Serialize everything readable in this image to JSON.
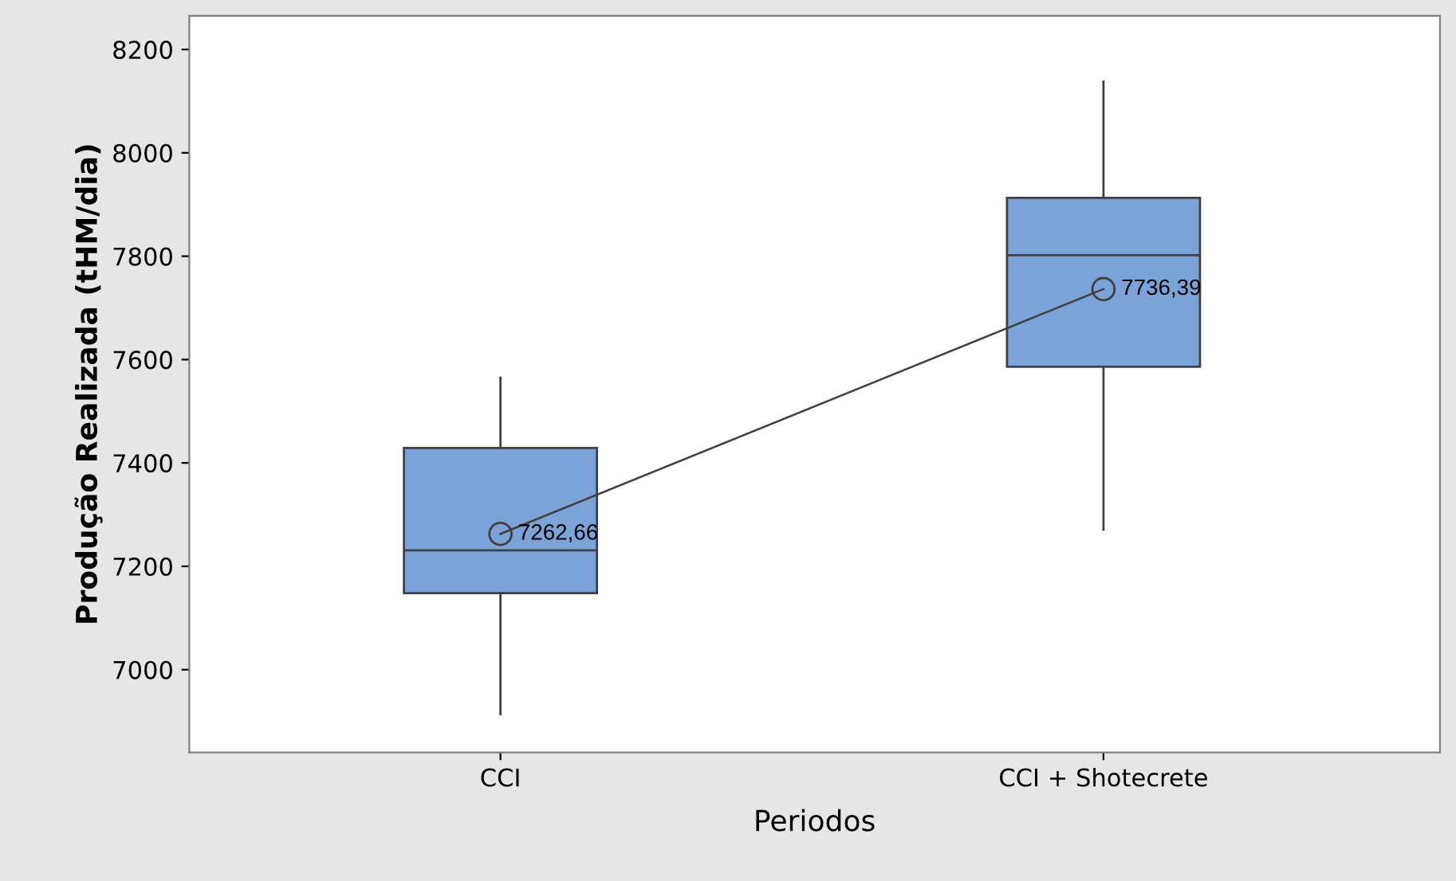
{
  "chart_data": {
    "type": "box",
    "xlabel": "Periodos",
    "ylabel": "Produção Realizada (tHM/dia)",
    "categories": [
      "CCI",
      "CCI + Shotecrete"
    ],
    "ylim": [
      6840,
      8265
    ],
    "yticks": [
      7000,
      7200,
      7400,
      7600,
      7800,
      8000,
      8200
    ],
    "grid": false,
    "legend": false,
    "boxes": [
      {
        "low": 6914,
        "q1": 7148,
        "median": 7231,
        "q3": 7429,
        "high": 7565
      },
      {
        "low": 7271,
        "q1": 7586,
        "median": 7802,
        "q3": 7913,
        "high": 8138
      }
    ],
    "color": "#7ba3d8",
    "series": [
      {
        "type": "line",
        "color": "#404040",
        "marker": "circle",
        "values": [
          7262.66,
          7736.39
        ],
        "value_labels": [
          "7262,66",
          "7736,39"
        ]
      }
    ]
  }
}
